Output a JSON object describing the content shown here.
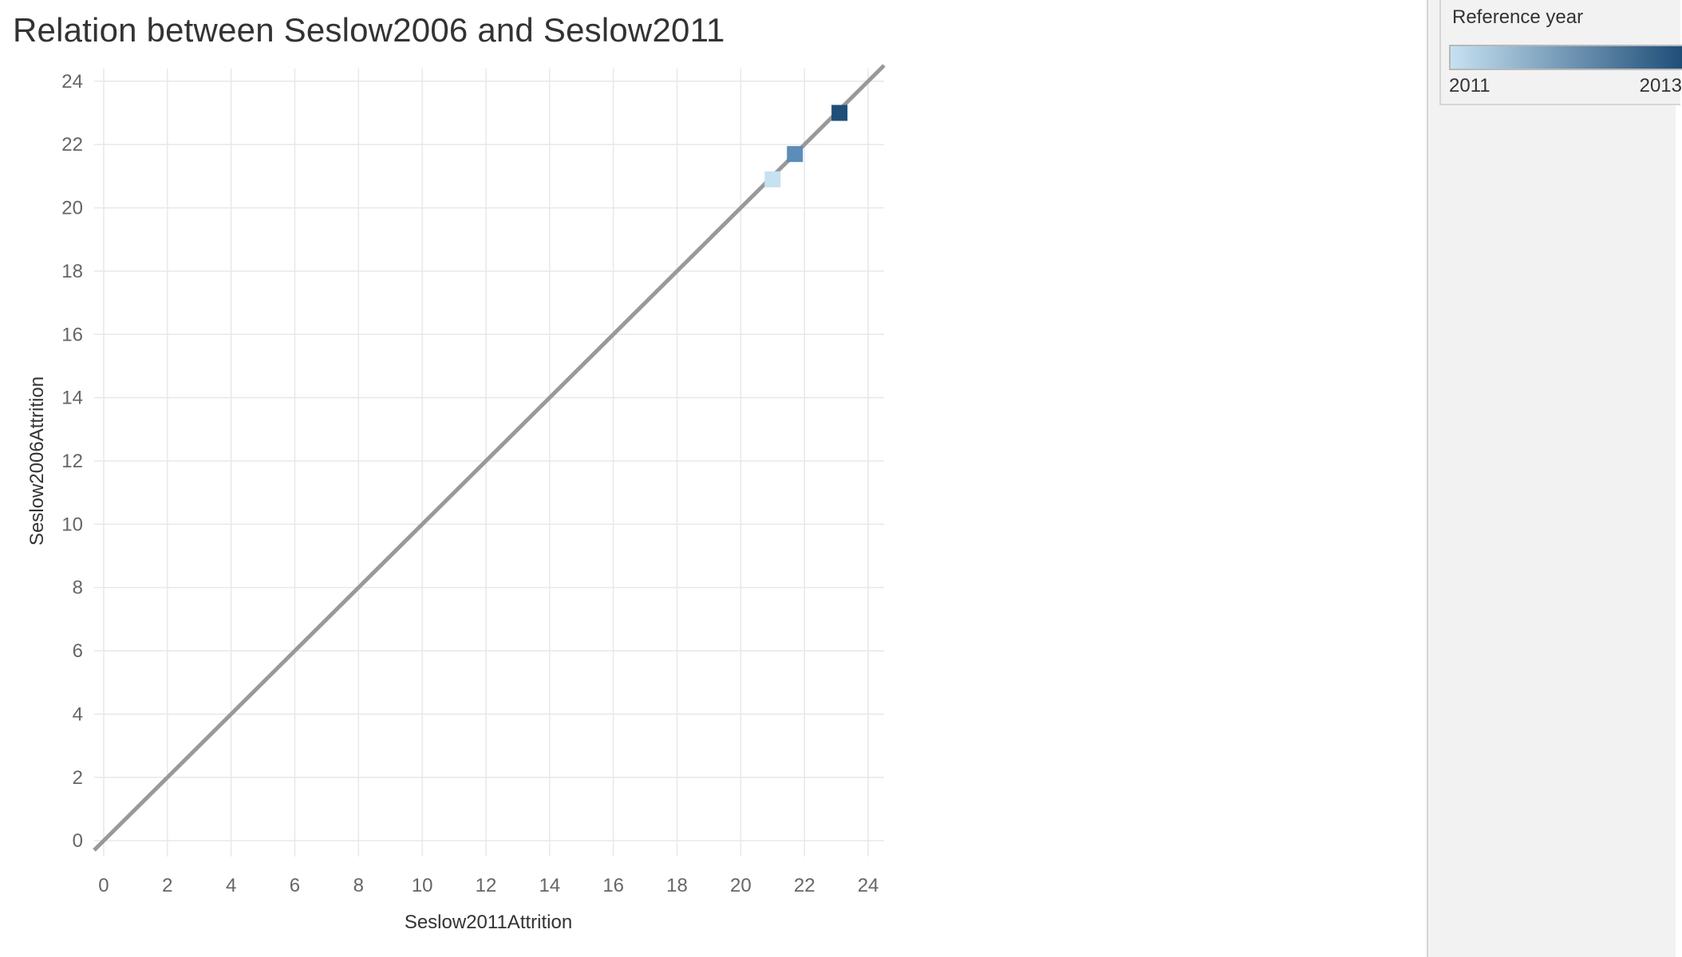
{
  "title": "Relation between Seslow2006 and Seslow2011",
  "colors": {
    "grid": "#e8e8e8",
    "tick_text": "#666666",
    "axis_title": "#333333",
    "reference_line": "#999999",
    "gradient_low": "#c6e1f1",
    "gradient_high": "#1f4e79"
  },
  "legend": {
    "title": "Reference year",
    "min_label": "2011",
    "max_label": "2013",
    "min_value": 2011,
    "max_value": 2013
  },
  "chart_data": {
    "type": "scatter",
    "title": "Relation between Seslow2006 and Seslow2011",
    "xlabel": "Seslow2011Attrition",
    "ylabel": "Seslow2006Attrition",
    "xlim": [
      -0.3,
      24.5
    ],
    "ylim": [
      -0.5,
      24.4
    ],
    "xticks": [
      0,
      2,
      4,
      6,
      8,
      10,
      12,
      14,
      16,
      18,
      20,
      22,
      24
    ],
    "yticks": [
      0,
      2,
      4,
      6,
      8,
      10,
      12,
      14,
      16,
      18,
      20,
      22,
      24
    ],
    "grid": true,
    "marker": "square",
    "color_encoding": "Reference year",
    "points": [
      {
        "x": 21.0,
        "y": 20.9,
        "color_value": 2011,
        "color": "#c6e1f1"
      },
      {
        "x": 21.7,
        "y": 21.7,
        "color_value": 2012,
        "color": "#5b8db8"
      },
      {
        "x": 23.1,
        "y": 23.0,
        "color_value": 2013,
        "color": "#1f4e79"
      }
    ],
    "reference_line": {
      "type": "identity",
      "from": [
        -0.3,
        -0.3
      ],
      "to": [
        24.5,
        24.5
      ]
    },
    "legend": {
      "title": "Reference year",
      "placement": "right",
      "type": "continuous"
    }
  }
}
